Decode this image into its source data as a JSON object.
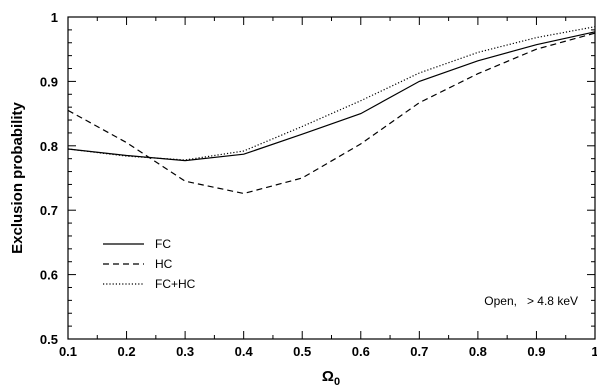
{
  "chart_data": {
    "type": "line",
    "title": "",
    "xlabel": "Ω",
    "xlabel_sub": "0",
    "ylabel": "Exclusion  probability",
    "xlim": [
      0.1,
      1.0
    ],
    "ylim": [
      0.5,
      1.0
    ],
    "xticks": [
      "0.1",
      "0.2",
      "0.3",
      "0.4",
      "0.5",
      "0.6",
      "0.7",
      "0.8",
      "0.9",
      "1"
    ],
    "yticks": [
      "0.5",
      "0.6",
      "0.7",
      "0.8",
      "0.9",
      "1"
    ],
    "grid": false,
    "legend_position": "bottom-left",
    "annotation": "Open,   > 4.8 keV",
    "x": [
      0.1,
      0.2,
      0.3,
      0.4,
      0.5,
      0.6,
      0.7,
      0.8,
      0.9,
      1.0
    ],
    "series": [
      {
        "name": "FC",
        "line_style": "solid",
        "color": "#000000",
        "values": [
          0.795,
          0.785,
          0.777,
          0.787,
          0.818,
          0.85,
          0.9,
          0.932,
          0.957,
          0.977
        ]
      },
      {
        "name": "HC",
        "line_style": "dashed",
        "color": "#000000",
        "values": [
          0.855,
          0.805,
          0.745,
          0.726,
          0.75,
          0.803,
          0.867,
          0.912,
          0.95,
          0.975
        ]
      },
      {
        "name": "FC+HC",
        "line_style": "dotted",
        "color": "#000000",
        "values": [
          0.795,
          0.784,
          0.778,
          0.792,
          0.83,
          0.87,
          0.913,
          0.945,
          0.968,
          0.985
        ]
      }
    ]
  }
}
